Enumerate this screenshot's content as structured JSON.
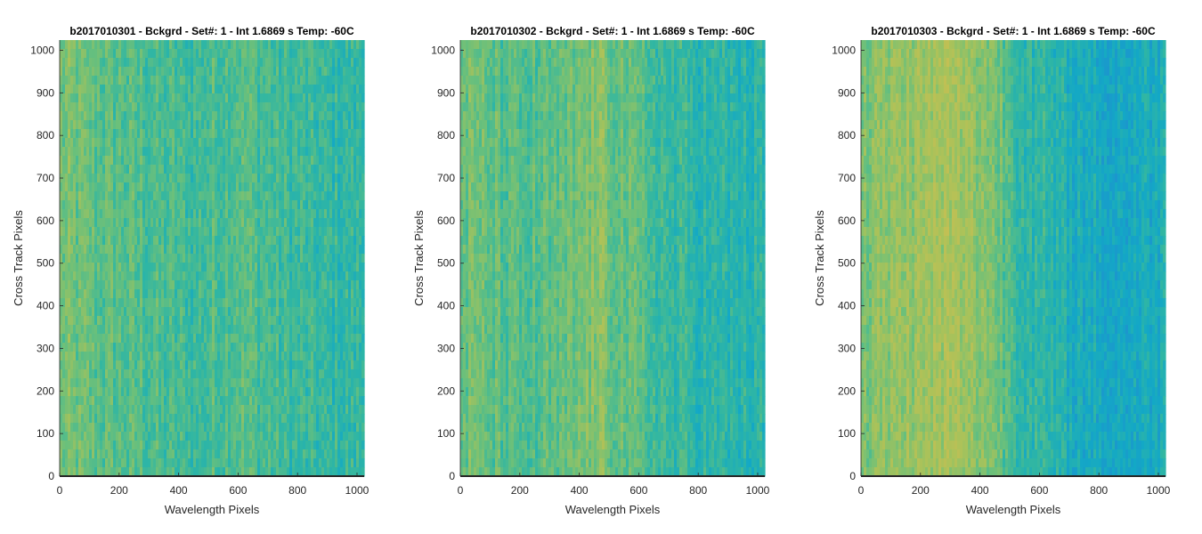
{
  "chart_data": [
    {
      "type": "heatmap",
      "title": "b2017010301 - Bckgrd - Set#: 1 - Int 1.6869 s Temp: -60C",
      "xlabel": "Wavelength Pixels",
      "ylabel": "Cross Track Pixels",
      "xlim": [
        0,
        1024
      ],
      "ylim": [
        0,
        1024
      ],
      "xticks": [
        0,
        200,
        400,
        600,
        800,
        1000
      ],
      "yticks": [
        0,
        100,
        200,
        300,
        400,
        500,
        600,
        700,
        800,
        900,
        1000
      ],
      "colormap": [
        "#1f8fd0",
        "#13a8c6",
        "#2fb6a4",
        "#6cc07a",
        "#a9c25a",
        "#c8bf52"
      ],
      "column_profile": [
        {
          "x": 0,
          "level": 0.62
        },
        {
          "x": 150,
          "level": 0.55
        },
        {
          "x": 300,
          "level": 0.5
        },
        {
          "x": 450,
          "level": 0.45
        },
        {
          "x": 600,
          "level": 0.55
        },
        {
          "x": 750,
          "level": 0.45
        },
        {
          "x": 900,
          "level": 0.4
        },
        {
          "x": 1024,
          "level": 0.4
        }
      ]
    },
    {
      "type": "heatmap",
      "title": "b2017010302 - Bckgrd - Set#: 1 - Int 1.6869 s Temp: -60C",
      "xlabel": "Wavelength Pixels",
      "ylabel": "Cross Track Pixels",
      "xlim": [
        0,
        1024
      ],
      "ylim": [
        0,
        1024
      ],
      "xticks": [
        0,
        200,
        400,
        600,
        800,
        1000
      ],
      "yticks": [
        0,
        100,
        200,
        300,
        400,
        500,
        600,
        700,
        800,
        900,
        1000
      ],
      "colormap": [
        "#1f8fd0",
        "#13a8c6",
        "#2fb6a4",
        "#6cc07a",
        "#a9c25a",
        "#c8bf52"
      ],
      "column_profile": [
        {
          "x": 0,
          "level": 0.62
        },
        {
          "x": 200,
          "level": 0.5
        },
        {
          "x": 350,
          "level": 0.55
        },
        {
          "x": 450,
          "level": 0.68
        },
        {
          "x": 550,
          "level": 0.58
        },
        {
          "x": 700,
          "level": 0.42
        },
        {
          "x": 850,
          "level": 0.36
        },
        {
          "x": 1024,
          "level": 0.34
        }
      ]
    },
    {
      "type": "heatmap",
      "title": "b2017010303 - Bckgrd - Set#: 1 - Int 1.6869 s Temp: -60C",
      "xlabel": "Wavelength Pixels",
      "ylabel": "Cross Track Pixels",
      "xlim": [
        0,
        1024
      ],
      "ylim": [
        0,
        1024
      ],
      "xticks": [
        0,
        200,
        400,
        600,
        800,
        1000
      ],
      "yticks": [
        0,
        100,
        200,
        300,
        400,
        500,
        600,
        700,
        800,
        900,
        1000
      ],
      "colormap": [
        "#1f8fd0",
        "#13a8c6",
        "#2fb6a4",
        "#6cc07a",
        "#a9c25a",
        "#c8bf52"
      ],
      "column_profile": [
        {
          "x": 0,
          "level": 0.66
        },
        {
          "x": 150,
          "level": 0.74
        },
        {
          "x": 300,
          "level": 0.8
        },
        {
          "x": 430,
          "level": 0.68
        },
        {
          "x": 550,
          "level": 0.42
        },
        {
          "x": 700,
          "level": 0.28
        },
        {
          "x": 850,
          "level": 0.2
        },
        {
          "x": 1024,
          "level": 0.28
        }
      ]
    }
  ]
}
